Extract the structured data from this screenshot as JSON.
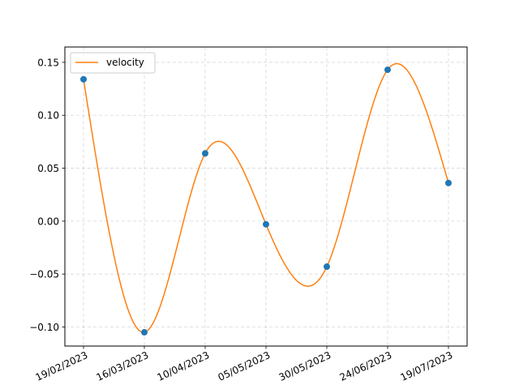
{
  "chart_data": {
    "type": "scatter",
    "x": [
      "19/02/2023",
      "16/03/2023",
      "10/04/2023",
      "05/05/2023",
      "30/05/2023",
      "24/06/2023",
      "19/07/2023"
    ],
    "x_tick_labels": [
      "19/02/2023",
      "16/03/2023",
      "10/04/2023",
      "05/05/2023",
      "30/05/2023",
      "24/06/2023",
      "19/07/2023"
    ],
    "points": [
      0.134,
      -0.105,
      0.064,
      -0.003,
      -0.043,
      0.143,
      0.036
    ],
    "series": [
      {
        "name": "velocity",
        "type": "line",
        "smooth": true,
        "color": "#ff7f0e",
        "values": [
          0.134,
          -0.105,
          0.064,
          -0.003,
          -0.043,
          0.143,
          0.036
        ]
      }
    ],
    "point_color": "#1f77b4",
    "y_ticks": [
      -0.1,
      -0.05,
      0.0,
      0.05,
      0.1,
      0.15
    ],
    "y_tick_labels": [
      "−0.10",
      "−0.05",
      "0.00",
      "0.05",
      "0.10",
      "0.15"
    ],
    "ylim": [
      -0.118,
      0.1645
    ],
    "grid": true,
    "grid_style": "dashed",
    "legend_position": "top-left",
    "title": "",
    "xlabel": "",
    "ylabel": ""
  }
}
